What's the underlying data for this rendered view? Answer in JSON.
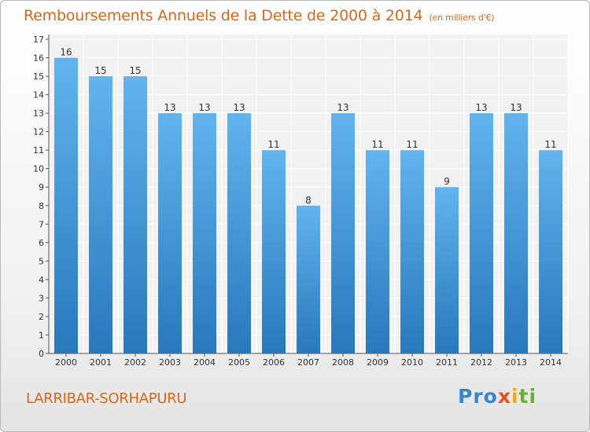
{
  "title": "Remboursements Annuels de la Dette de 2000 à 2014",
  "unit": "(en milliers d'€)",
  "commune": "LARRIBAR-SORHAPURU",
  "logo": {
    "p1": "Pro",
    "p2": "x",
    "p3": "i",
    "p4": "ti"
  },
  "colors": {
    "title": "#d2691e",
    "bar": "#4a9fe0"
  },
  "chart_data": {
    "type": "bar",
    "title": "Remboursements Annuels de la Dette de 2000 à 2014",
    "xlabel": "",
    "ylabel": "",
    "ylim": [
      0,
      17
    ],
    "yticks": [
      0,
      1,
      2,
      3,
      4,
      5,
      6,
      7,
      8,
      9,
      10,
      11,
      12,
      13,
      14,
      15,
      16,
      17
    ],
    "grid": true,
    "categories": [
      "2000",
      "2001",
      "2002",
      "2003",
      "2004",
      "2005",
      "2006",
      "2007",
      "2008",
      "2009",
      "2010",
      "2011",
      "2012",
      "2013",
      "2014"
    ],
    "values": [
      16,
      15,
      15,
      13,
      13,
      13,
      11,
      8,
      13,
      11,
      11,
      9,
      13,
      13,
      11
    ]
  }
}
